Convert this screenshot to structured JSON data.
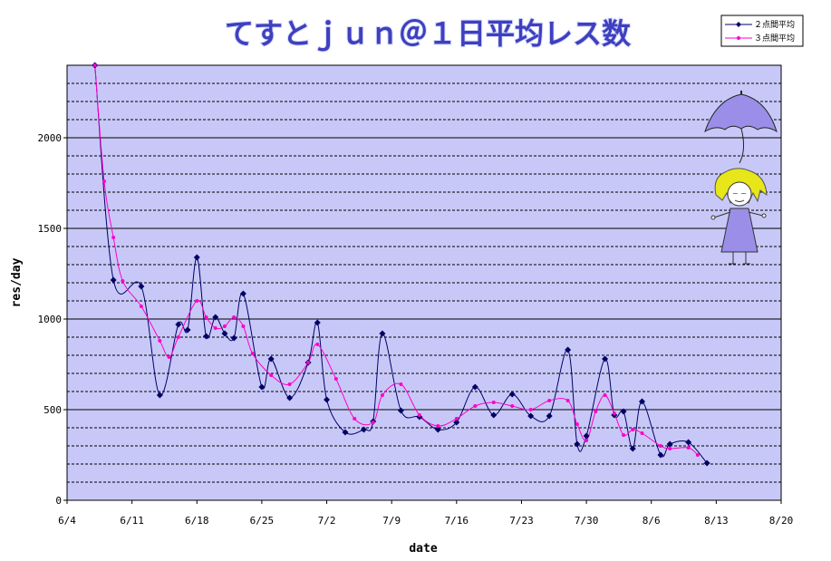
{
  "chart_data": {
    "type": "line",
    "title": "てすとｊｕｎ＠１日平均レス数",
    "xlabel": "date",
    "ylabel": "res/day",
    "x_ticks": [
      "6/4",
      "6/11",
      "6/18",
      "6/25",
      "7/2",
      "7/9",
      "7/16",
      "7/23",
      "7/30",
      "8/6",
      "8/13",
      "8/20"
    ],
    "y_ticks": [
      "0",
      "500",
      "1000",
      "1500",
      "2000"
    ],
    "ylim": [
      0,
      2400
    ],
    "xlim_days": [
      0,
      77
    ],
    "grid": true,
    "legend_position": "top-right",
    "series": [
      {
        "name": "２点間平均",
        "color": "#000066",
        "marker": "diamond",
        "points": [
          [
            3,
            2400
          ],
          [
            5,
            1215
          ],
          [
            8,
            1180
          ],
          [
            10,
            580
          ],
          [
            12,
            970
          ],
          [
            13,
            940
          ],
          [
            14,
            1340
          ],
          [
            15,
            905
          ],
          [
            16,
            1010
          ],
          [
            17,
            920
          ],
          [
            18,
            895
          ],
          [
            19,
            1140
          ],
          [
            21,
            625
          ],
          [
            22,
            780
          ],
          [
            24,
            565
          ],
          [
            26,
            760
          ],
          [
            27,
            980
          ],
          [
            28,
            555
          ],
          [
            30,
            375
          ],
          [
            32,
            390
          ],
          [
            33,
            435
          ],
          [
            34,
            920
          ],
          [
            36,
            495
          ],
          [
            38,
            460
          ],
          [
            40,
            390
          ],
          [
            42,
            430
          ],
          [
            44,
            625
          ],
          [
            46,
            470
          ],
          [
            48,
            585
          ],
          [
            50,
            465
          ],
          [
            52,
            465
          ],
          [
            54,
            830
          ],
          [
            55,
            310
          ],
          [
            56,
            355
          ],
          [
            58,
            780
          ],
          [
            59,
            470
          ],
          [
            60,
            490
          ],
          [
            61,
            285
          ],
          [
            62,
            545
          ],
          [
            64,
            250
          ],
          [
            65,
            310
          ],
          [
            67,
            320
          ],
          [
            69,
            205
          ]
        ]
      },
      {
        "name": "３点間平均",
        "color": "#ff00cc",
        "marker": "dot",
        "points": [
          [
            3,
            2400
          ],
          [
            4,
            1760
          ],
          [
            5,
            1450
          ],
          [
            6,
            1210
          ],
          [
            8,
            1070
          ],
          [
            10,
            880
          ],
          [
            11,
            790
          ],
          [
            12,
            900
          ],
          [
            14,
            1100
          ],
          [
            15,
            1010
          ],
          [
            16,
            950
          ],
          [
            17,
            960
          ],
          [
            18,
            1010
          ],
          [
            19,
            960
          ],
          [
            20,
            810
          ],
          [
            22,
            690
          ],
          [
            24,
            640
          ],
          [
            26,
            760
          ],
          [
            27,
            860
          ],
          [
            29,
            670
          ],
          [
            31,
            450
          ],
          [
            33,
            430
          ],
          [
            34,
            580
          ],
          [
            36,
            640
          ],
          [
            38,
            470
          ],
          [
            40,
            410
          ],
          [
            42,
            450
          ],
          [
            44,
            520
          ],
          [
            46,
            540
          ],
          [
            48,
            520
          ],
          [
            50,
            500
          ],
          [
            52,
            550
          ],
          [
            54,
            550
          ],
          [
            55,
            420
          ],
          [
            56,
            330
          ],
          [
            57,
            490
          ],
          [
            58,
            580
          ],
          [
            59,
            480
          ],
          [
            60,
            360
          ],
          [
            61,
            390
          ],
          [
            62,
            370
          ],
          [
            64,
            300
          ],
          [
            65,
            285
          ],
          [
            67,
            290
          ],
          [
            68,
            250
          ]
        ]
      }
    ]
  }
}
